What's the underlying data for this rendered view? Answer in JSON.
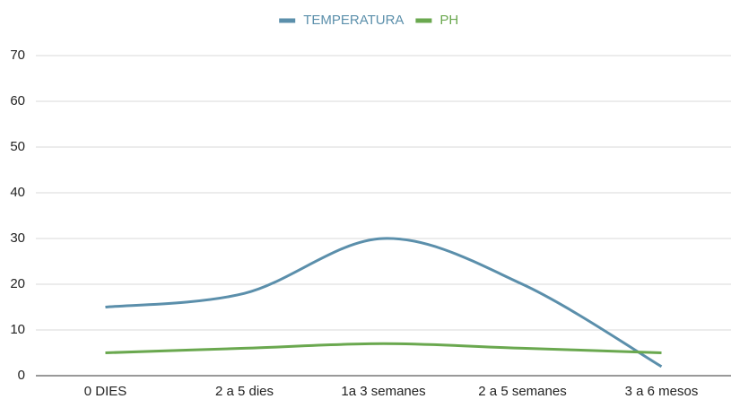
{
  "chart_data": {
    "type": "line",
    "categories": [
      "0 DIES",
      "2 a 5 dies",
      "1a 3 semanes",
      "2 a 5 semanes",
      "3 a 6 mesos"
    ],
    "series": [
      {
        "name": "TEMPERATURA",
        "color": "#5b8fab",
        "values": [
          15,
          18,
          30,
          20,
          2
        ]
      },
      {
        "name": "PH",
        "color": "#6aa84f",
        "values": [
          5,
          6,
          7,
          6,
          5
        ]
      }
    ],
    "ylim": [
      0,
      70
    ],
    "yticks": [
      0,
      10,
      20,
      30,
      40,
      50,
      60,
      70
    ],
    "grid": true,
    "smooth": true,
    "legend": "top"
  }
}
